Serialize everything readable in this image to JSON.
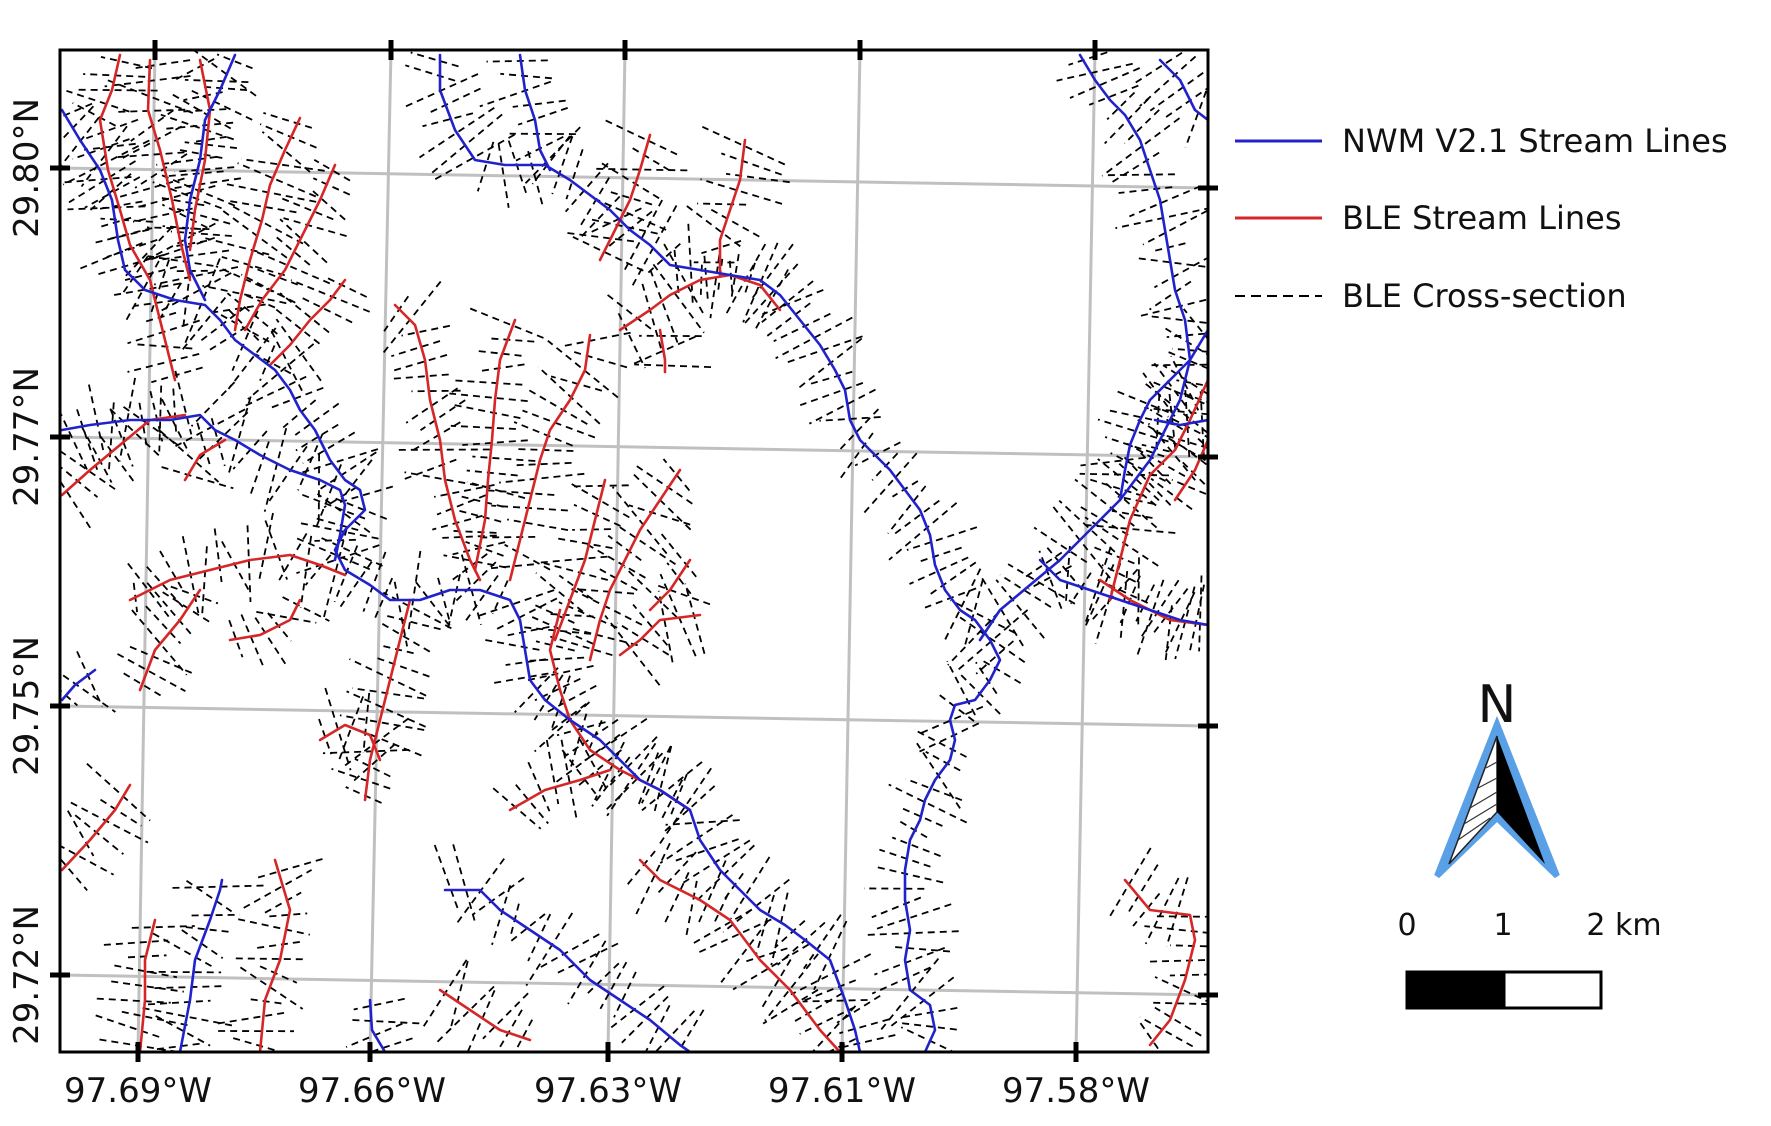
{
  "map": {
    "lon_ticks": [
      "97.69°W",
      "97.66°W",
      "97.63°W",
      "97.61°W",
      "97.58°W"
    ],
    "lat_ticks": [
      "29.80°N",
      "29.77°N",
      "29.75°N",
      "29.72°N"
    ]
  },
  "legend": {
    "items": [
      {
        "label": "NWM V2.1 Stream Lines",
        "color": "#2222cc",
        "style": "solid"
      },
      {
        "label": "BLE Stream Lines",
        "color": "#d62728",
        "style": "solid"
      },
      {
        "label": "BLE Cross-section",
        "color": "#000000",
        "style": "dashed"
      }
    ]
  },
  "north_arrow": {
    "label": "N",
    "outline_color": "#5aa0e6"
  },
  "scale_bar": {
    "labels": [
      "0",
      "1",
      "2 km"
    ]
  },
  "colors": {
    "nwm": "#2222cc",
    "ble": "#d62728",
    "grid": "#c0c0c0",
    "xsec": "#000000"
  }
}
